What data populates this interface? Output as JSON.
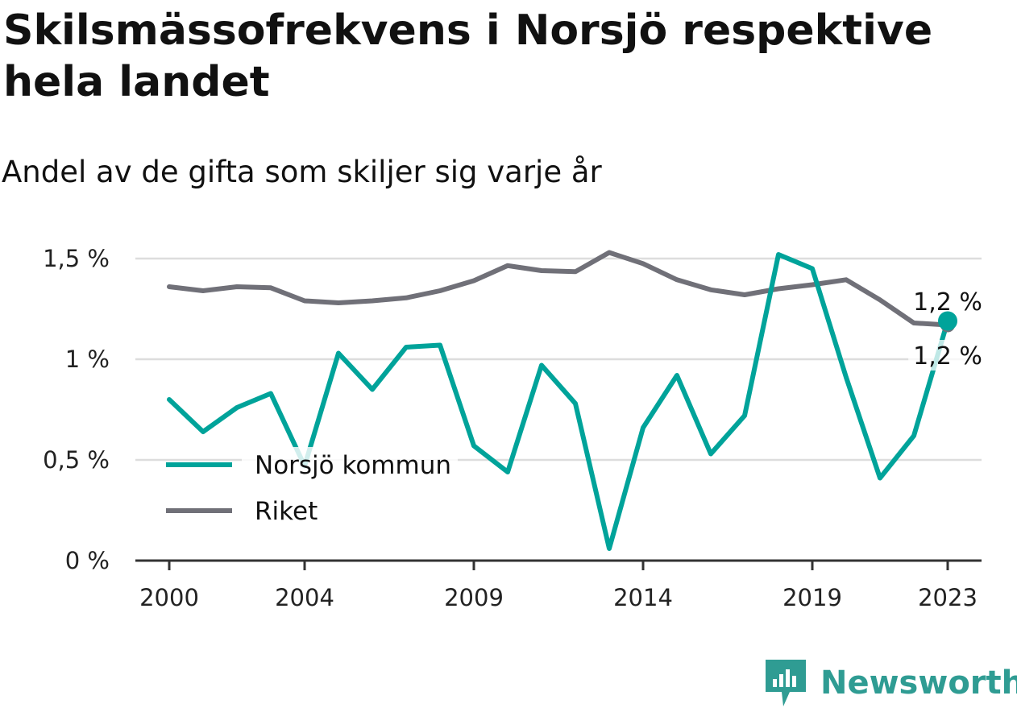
{
  "chart_data": {
    "type": "line",
    "title": "Skilsmässofrekvens i Norsjö respektive hela landet",
    "subtitle": "Andel av de gifta som skiljer sig varje år",
    "x": [
      2000,
      2001,
      2002,
      2003,
      2004,
      2005,
      2006,
      2007,
      2008,
      2009,
      2010,
      2011,
      2012,
      2013,
      2014,
      2015,
      2016,
      2017,
      2018,
      2019,
      2020,
      2021,
      2022,
      2023
    ],
    "xticks": [
      2000,
      2004,
      2009,
      2014,
      2019,
      2023
    ],
    "xtick_labels": [
      "2000",
      "2004",
      "2009",
      "2014",
      "2019",
      "2023"
    ],
    "xlim": [
      1999,
      2024
    ],
    "ylim": [
      0,
      1.6
    ],
    "yticks": [
      0,
      0.5,
      1,
      1.5
    ],
    "ytick_labels": [
      "0 %",
      "0,5 %",
      "1 %",
      "1,5 %"
    ],
    "grid": true,
    "legend_position": "bottom-left",
    "series": [
      {
        "name": "Norsjö kommun",
        "color": "#00a39a",
        "values": [
          0.8,
          0.64,
          0.76,
          0.83,
          0.47,
          1.03,
          0.85,
          1.06,
          1.07,
          0.57,
          0.44,
          0.97,
          0.78,
          0.06,
          0.66,
          0.92,
          0.53,
          0.72,
          1.52,
          1.45,
          0.91,
          0.41,
          0.62,
          1.19
        ],
        "end_label": "1,2 %"
      },
      {
        "name": "Riket",
        "color": "#707078",
        "values": [
          1.36,
          1.34,
          1.36,
          1.355,
          1.29,
          1.28,
          1.29,
          1.305,
          1.34,
          1.39,
          1.465,
          1.44,
          1.435,
          1.53,
          1.475,
          1.395,
          1.345,
          1.32,
          1.35,
          1.37,
          1.395,
          1.295,
          1.18,
          1.17
        ],
        "end_label": "1,2 %"
      }
    ]
  },
  "brand": {
    "name": "Newsworthy",
    "icon": "newsworthy-logo-icon",
    "color": "#2f9c93"
  }
}
